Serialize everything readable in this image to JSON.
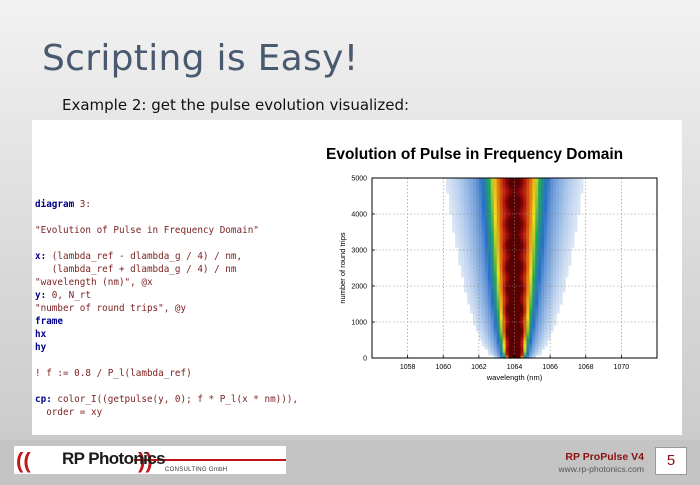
{
  "slide": {
    "title": "Scripting is Easy!",
    "subtitle": "Example 2: get the pulse evolution visualized:"
  },
  "code": {
    "lines": [
      [
        {
          "t": "diagram",
          "c": "kw"
        },
        {
          "t": " 3:",
          "c": "str"
        }
      ],
      [],
      [
        {
          "t": "\"Evolution of Pulse in Frequency Domain\"",
          "c": "str"
        }
      ],
      [],
      [
        {
          "t": "x:",
          "c": "kw"
        },
        {
          "t": " (lambda_ref - dlambda_g / 4) / nm,",
          "c": "str"
        }
      ],
      [
        {
          "t": "   (lambda_ref + dlambda_g / 4) / nm",
          "c": "str"
        }
      ],
      [
        {
          "t": "\"wavelength (nm)\", @x",
          "c": "str"
        }
      ],
      [
        {
          "t": "y:",
          "c": "kw"
        },
        {
          "t": " 0, N_rt",
          "c": "str"
        }
      ],
      [
        {
          "t": "\"number of round trips\", @y",
          "c": "str"
        }
      ],
      [
        {
          "t": "frame",
          "c": "kw"
        }
      ],
      [
        {
          "t": "hx",
          "c": "kw"
        }
      ],
      [
        {
          "t": "hy",
          "c": "kw"
        }
      ],
      [],
      [
        {
          "t": "! f := 0.8 / P_l(lambda_ref)",
          "c": "str"
        }
      ],
      [],
      [
        {
          "t": "cp:",
          "c": "kw"
        },
        {
          "t": " color_I((getpulse(y, 0); f * P_l(x * nm))),",
          "c": "str"
        }
      ],
      [
        {
          "t": "  order = xy",
          "c": "str"
        }
      ]
    ]
  },
  "chart_data": {
    "type": "heatmap",
    "title": "Evolution of Pulse in Frequency Domain",
    "xlabel": "wavelength (nm)",
    "ylabel": "number of round trips",
    "xlim": [
      1056,
      1072
    ],
    "ylim": [
      0,
      5000
    ],
    "xticks": [
      1058,
      1060,
      1062,
      1064,
      1066,
      1068,
      1070
    ],
    "yticks": [
      0,
      1000,
      2000,
      3000,
      4000,
      5000
    ],
    "grid": true,
    "center_wavelength": 1064,
    "colors": [
      "#ffffff",
      "#2a6fc9",
      "#22a65a",
      "#f0e020",
      "#e07010",
      "#b01010",
      "#5a0000"
    ]
  },
  "footer": {
    "logo_brackets_left": "((",
    "logo_brackets_right": "))",
    "logo": "RP Photonics",
    "logo_sub": "CONSULTING GmbH",
    "product": "RP ProPulse V4",
    "url": "www.rp-photonics.com",
    "page": "5"
  }
}
